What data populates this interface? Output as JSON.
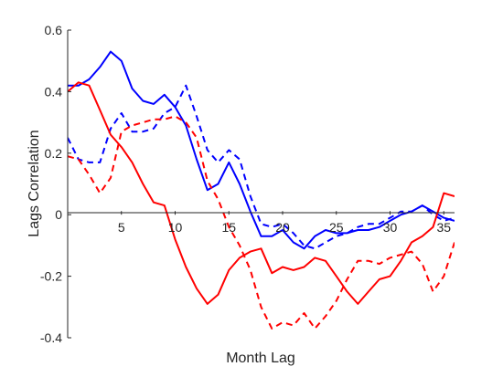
{
  "chart_data": {
    "type": "line",
    "title": "",
    "xlabel": "Month Lag",
    "ylabel": "Lags Correlation",
    "xlim": [
      0,
      36
    ],
    "ylim": [
      -0.4,
      0.6
    ],
    "x_ticks": [
      5,
      10,
      15,
      20,
      25,
      30,
      35
    ],
    "y_ticks": [
      -0.4,
      -0.2,
      0,
      0.2,
      0.4,
      0.6
    ],
    "x_tick_labels": [
      "5",
      "10",
      "15",
      "20",
      "25",
      "30",
      "35"
    ],
    "y_tick_labels": [
      "-0.4",
      "-0.2",
      "0",
      "0.2",
      "0.4",
      "0.6"
    ],
    "grid": false,
    "legend": "none",
    "series": [
      {
        "color": "#0000ff",
        "style": "solid",
        "x": [
          0,
          1,
          2,
          3,
          4,
          5,
          6,
          7,
          8,
          9,
          10,
          11,
          12,
          13,
          14,
          15,
          16,
          17,
          18,
          19,
          20,
          21,
          22,
          23,
          24,
          25,
          26,
          27,
          28,
          29,
          30,
          31,
          32,
          33,
          34,
          35,
          36
        ],
        "values": [
          0.42,
          0.42,
          0.44,
          0.48,
          0.53,
          0.5,
          0.41,
          0.37,
          0.36,
          0.39,
          0.35,
          0.29,
          0.18,
          0.08,
          0.1,
          0.17,
          0.1,
          0.01,
          -0.07,
          -0.07,
          -0.05,
          -0.09,
          -0.11,
          -0.07,
          -0.05,
          -0.06,
          -0.06,
          -0.05,
          -0.05,
          -0.04,
          -0.02,
          0.0,
          0.01,
          0.03,
          0.01,
          -0.01,
          -0.02
        ]
      },
      {
        "color": "#0000ff",
        "style": "dashed",
        "x": [
          0,
          1,
          2,
          3,
          4,
          5,
          6,
          7,
          8,
          9,
          10,
          11,
          12,
          13,
          14,
          15,
          16,
          17,
          18,
          19,
          20,
          21,
          22,
          23,
          24,
          25,
          26,
          27,
          28,
          29,
          30,
          31,
          32,
          33,
          34,
          35,
          36
        ],
        "values": [
          0.25,
          0.18,
          0.17,
          0.17,
          0.28,
          0.33,
          0.27,
          0.27,
          0.28,
          0.33,
          0.35,
          0.42,
          0.32,
          0.21,
          0.17,
          0.21,
          0.18,
          0.06,
          -0.03,
          -0.04,
          -0.03,
          -0.06,
          -0.1,
          -0.11,
          -0.09,
          -0.07,
          -0.06,
          -0.04,
          -0.03,
          -0.03,
          -0.01,
          0.01,
          0.01,
          0.03,
          0.0,
          -0.02,
          -0.01
        ]
      },
      {
        "color": "#ff0000",
        "style": "solid",
        "x": [
          0,
          1,
          2,
          3,
          4,
          5,
          6,
          7,
          8,
          9,
          10,
          11,
          12,
          13,
          14,
          15,
          16,
          17,
          18,
          19,
          20,
          21,
          22,
          23,
          24,
          25,
          26,
          27,
          28,
          29,
          30,
          31,
          32,
          33,
          34,
          35,
          36
        ],
        "values": [
          0.4,
          0.43,
          0.42,
          0.34,
          0.26,
          0.22,
          0.17,
          0.1,
          0.04,
          0.03,
          -0.08,
          -0.17,
          -0.24,
          -0.29,
          -0.26,
          -0.18,
          -0.14,
          -0.12,
          -0.11,
          -0.19,
          -0.17,
          -0.18,
          -0.17,
          -0.14,
          -0.15,
          -0.2,
          -0.25,
          -0.29,
          -0.25,
          -0.21,
          -0.2,
          -0.15,
          -0.09,
          -0.07,
          -0.04,
          0.07,
          0.06
        ]
      },
      {
        "color": "#ff0000",
        "style": "dashed",
        "x": [
          0,
          1,
          2,
          3,
          4,
          5,
          6,
          7,
          8,
          9,
          10,
          11,
          12,
          13,
          14,
          15,
          16,
          17,
          18,
          19,
          20,
          21,
          22,
          23,
          24,
          25,
          26,
          27,
          28,
          29,
          30,
          31,
          32,
          33,
          34,
          35,
          36
        ],
        "values": [
          0.19,
          0.18,
          0.13,
          0.07,
          0.12,
          0.27,
          0.29,
          0.3,
          0.31,
          0.31,
          0.32,
          0.3,
          0.25,
          0.11,
          0.05,
          -0.04,
          -0.1,
          -0.18,
          -0.3,
          -0.37,
          -0.35,
          -0.36,
          -0.32,
          -0.37,
          -0.33,
          -0.28,
          -0.21,
          -0.15,
          -0.15,
          -0.16,
          -0.14,
          -0.13,
          -0.12,
          -0.16,
          -0.25,
          -0.2,
          -0.09
        ]
      }
    ]
  }
}
